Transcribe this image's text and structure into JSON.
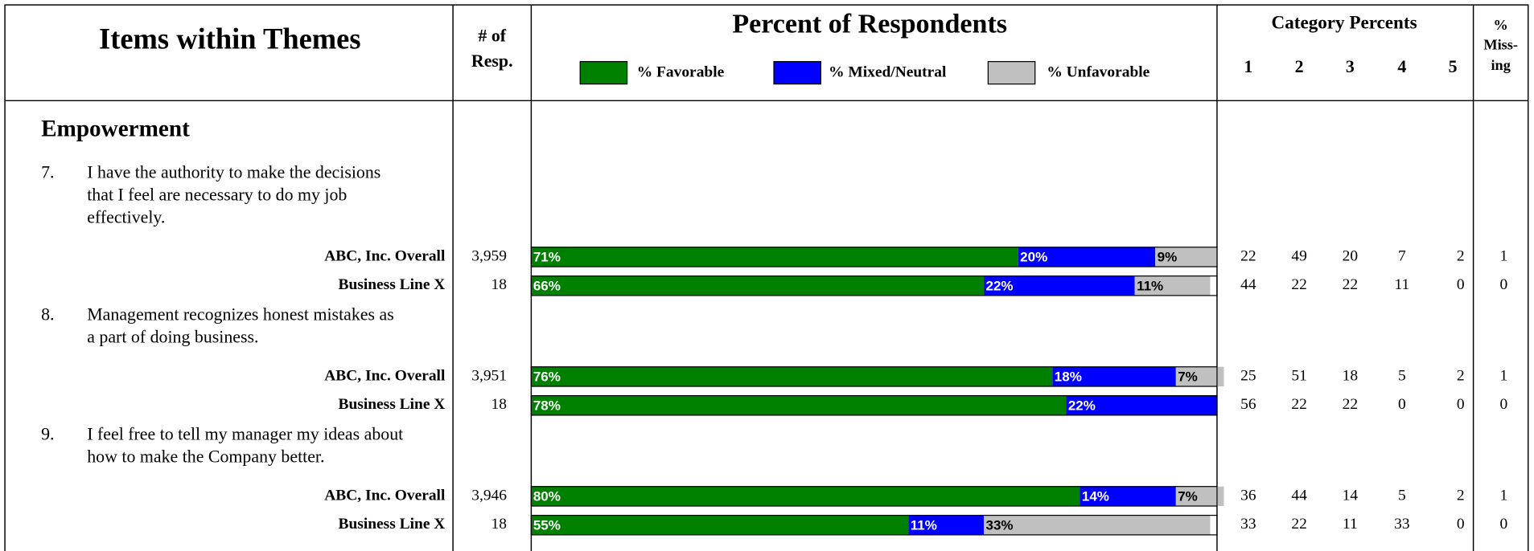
{
  "header": {
    "items_title": "Items within Themes",
    "resp_title": [
      "# of",
      "Resp."
    ],
    "chart_title": "Percent of Respondents",
    "legend": [
      {
        "label": "% Favorable",
        "color": "#008000"
      },
      {
        "label": "% Mixed/Neutral",
        "color": "#0000ff"
      },
      {
        "label": "% Unfavorable",
        "color": "#c0c0c0"
      }
    ],
    "category_title": "Category Percents",
    "category_labels": [
      "1",
      "2",
      "3",
      "4",
      "5"
    ],
    "missing_title": [
      "%",
      "Miss-",
      "ing"
    ]
  },
  "theme": "Empowerment",
  "items": [
    {
      "number": "7.",
      "text_lines": [
        "I have the authority to make the decisions",
        "that I feel are necessary to do my job",
        "effectively."
      ],
      "rows": [
        {
          "group": "ABC, Inc. Overall",
          "n": "3,959",
          "percents": [
            71,
            20,
            9
          ],
          "percent_labels": [
            "71%",
            "20%",
            "9%"
          ],
          "category_percents": [
            22,
            49,
            20,
            7,
            2
          ],
          "missing": 1
        },
        {
          "group": "Business Line X",
          "n": "18",
          "percents": [
            66,
            22,
            11
          ],
          "percent_labels": [
            "66%",
            "22%",
            "11%"
          ],
          "category_percents": [
            44,
            22,
            22,
            11,
            0
          ],
          "missing": 0
        }
      ]
    },
    {
      "number": "8.",
      "text_lines": [
        "Management recognizes honest mistakes as",
        "a part of doing business."
      ],
      "rows": [
        {
          "group": "ABC, Inc. Overall",
          "n": "3,951",
          "percents": [
            76,
            18,
            7
          ],
          "percent_labels": [
            "76%",
            "18%",
            "7%"
          ],
          "category_percents": [
            25,
            51,
            18,
            5,
            2
          ],
          "missing": 1
        },
        {
          "group": "Business Line X",
          "n": "18",
          "percents": [
            78,
            22,
            0
          ],
          "percent_labels": [
            "78%",
            "22%",
            null
          ],
          "category_percents": [
            56,
            22,
            22,
            0,
            0
          ],
          "missing": 0
        }
      ]
    },
    {
      "number": "9.",
      "text_lines": [
        "I feel free to tell my manager my ideas about",
        "how to make the Company better."
      ],
      "rows": [
        {
          "group": "ABC, Inc. Overall",
          "n": "3,946",
          "percents": [
            80,
            14,
            7
          ],
          "percent_labels": [
            "80%",
            "14%",
            "7%"
          ],
          "category_percents": [
            36,
            44,
            14,
            5,
            2
          ],
          "missing": 1
        },
        {
          "group": "Business Line X",
          "n": "18",
          "percents": [
            55,
            11,
            33
          ],
          "percent_labels": [
            "55%",
            "11%",
            "33%"
          ],
          "category_percents": [
            33,
            22,
            11,
            33,
            0
          ],
          "missing": 0
        }
      ]
    }
  ]
}
